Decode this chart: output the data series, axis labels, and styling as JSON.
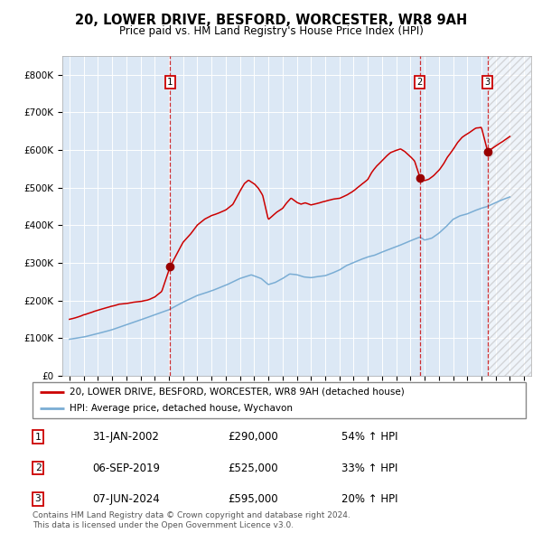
{
  "title": "20, LOWER DRIVE, BESFORD, WORCESTER, WR8 9AH",
  "subtitle": "Price paid vs. HM Land Registry's House Price Index (HPI)",
  "legend_line1": "20, LOWER DRIVE, BESFORD, WORCESTER, WR8 9AH (detached house)",
  "legend_line2": "HPI: Average price, detached house, Wychavon",
  "transactions": [
    {
      "num": 1,
      "date": "31-JAN-2002",
      "price": 290000,
      "pct": "54%",
      "dir": "↑",
      "x_year": 2002.08
    },
    {
      "num": 2,
      "date": "06-SEP-2019",
      "price": 525000,
      "pct": "33%",
      "dir": "↑",
      "x_year": 2019.67
    },
    {
      "num": 3,
      "date": "07-JUN-2024",
      "price": 595000,
      "pct": "20%",
      "dir": "↑",
      "x_year": 2024.44
    }
  ],
  "footer_line1": "Contains HM Land Registry data © Crown copyright and database right 2024.",
  "footer_line2": "This data is licensed under the Open Government Licence v3.0.",
  "ylim": [
    0,
    850000
  ],
  "xlim_start": 1994.5,
  "xlim_end": 2027.5,
  "bg_color": "#dce8f5",
  "red_line_color": "#cc0000",
  "blue_line_color": "#7aadd4",
  "hatch_start": 2024.44,
  "hatch_end": 2027.5,
  "yticks": [
    0,
    100000,
    200000,
    300000,
    400000,
    500000,
    600000,
    700000,
    800000
  ]
}
